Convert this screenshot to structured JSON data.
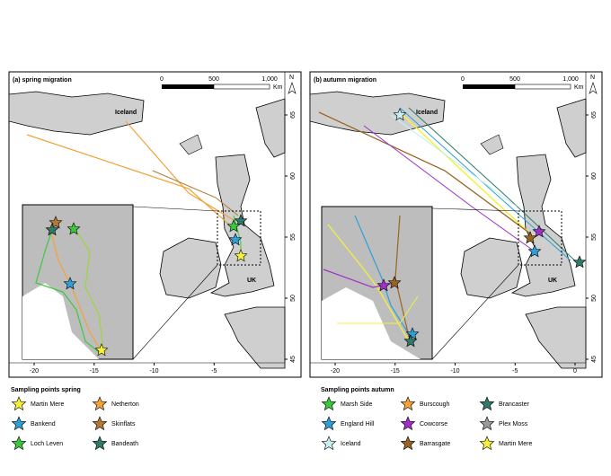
{
  "panels": [
    {
      "title": "(a) spring migration",
      "scale": {
        "ticks": [
          "0",
          "500",
          "1,000"
        ],
        "unit": "Km"
      },
      "north": "N",
      "iceland": "Iceland",
      "uk": "UK",
      "lon_ticks": [
        -20,
        -15,
        -10,
        -5
      ],
      "lat_ticks": [
        65,
        60,
        55,
        50,
        45
      ]
    },
    {
      "title": "(b) autumn migration",
      "scale": {
        "ticks": [
          "0",
          "500",
          "1,000"
        ],
        "unit": "Km"
      },
      "north": "N",
      "iceland": "Iceland",
      "uk": "UK",
      "lon_ticks": [
        -20,
        -15,
        -10,
        -5,
        0
      ],
      "lat_ticks": [
        65,
        60,
        55,
        50,
        45
      ]
    }
  ],
  "legends": [
    {
      "title": "Sampling points spring",
      "columns": 2,
      "items": [
        {
          "name": "Martin Mere",
          "color": "#f5f03c"
        },
        {
          "name": "Netherton",
          "color": "#f4a23a"
        },
        {
          "name": "Bankend",
          "color": "#2f9fd8"
        },
        {
          "name": "Skinflats",
          "color": "#b07a36"
        },
        {
          "name": "Loch Leven",
          "color": "#3cc83c"
        },
        {
          "name": "Bandeath",
          "color": "#2f7a68"
        }
      ]
    },
    {
      "title": "Sampling points autumn",
      "columns": 3,
      "items": [
        {
          "name": "Marsh Side",
          "color": "#3cc83c"
        },
        {
          "name": "Burscough",
          "color": "#f4a23a"
        },
        {
          "name": "Brancaster",
          "color": "#2f7a68"
        },
        {
          "name": "England Hill",
          "color": "#2f9fd8"
        },
        {
          "name": "Cowcorse",
          "color": "#a030c8"
        },
        {
          "name": "Plex Moss",
          "color": "#9a9a9a"
        },
        {
          "name": "Iceland",
          "color": "#c8f0f4"
        },
        {
          "name": "Barrasgate",
          "color": "#9a6420"
        },
        {
          "name": "Martin Mere",
          "color": "#f5f03c"
        }
      ]
    }
  ]
}
